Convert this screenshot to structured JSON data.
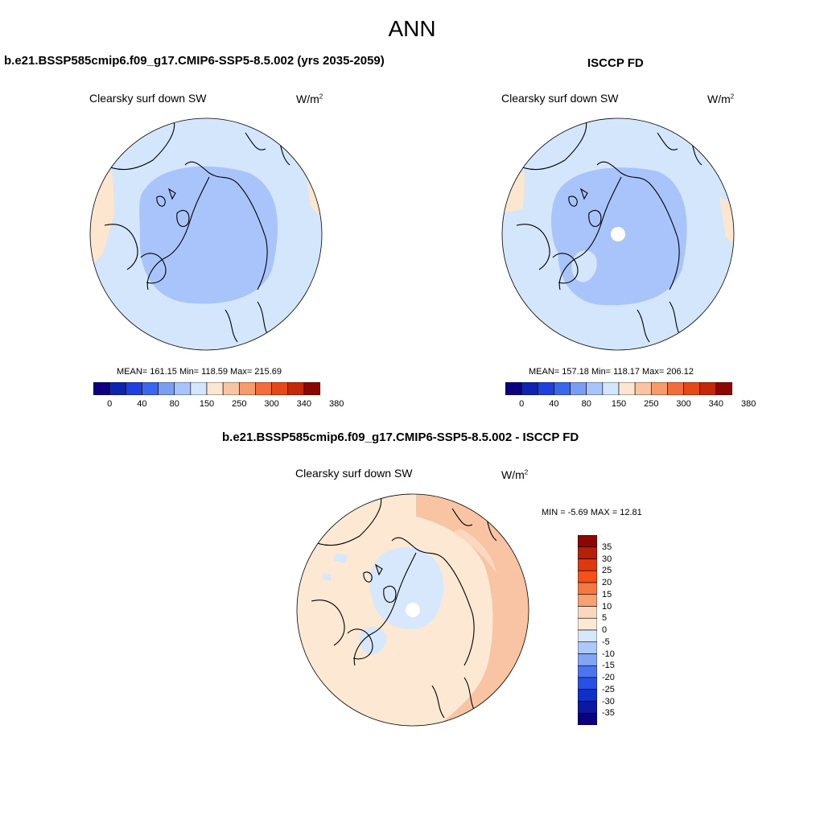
{
  "title": "ANN",
  "panels": [
    {
      "title": "b.e21.BSSP585cmip6.f09_g17.CMIP6-SSP5-8.5.002 (yrs 2035-2059)",
      "variable": "Clearsky surf down SW",
      "units": "W/m",
      "units_sup": "2",
      "stats": "MEAN= 161.15  Min= 118.59  Max= 215.69"
    },
    {
      "title": "ISCCP FD",
      "variable": "Clearsky surf down SW",
      "units": "W/m",
      "units_sup": "2",
      "stats": "MEAN= 157.18  Min= 118.17  Max= 206.12"
    },
    {
      "title": "b.e21.BSSP585cmip6.f09_g17.CMIP6-SSP5-8.5.002 - ISCCP FD",
      "variable": "Clearsky surf down SW",
      "units": "W/m",
      "units_sup": "2",
      "stats": "MIN =  -5.69 MAX =  12.81"
    }
  ],
  "colorbar_abs": {
    "colors": [
      "#0c0080",
      "#0d24b0",
      "#1f40e0",
      "#3a66f0",
      "#7b9ef5",
      "#a8c4fa",
      "#d4e6fc",
      "#fce6d0",
      "#f8c4a4",
      "#f79a6c",
      "#f56c3c",
      "#e64818",
      "#c42808",
      "#8a0800"
    ],
    "ticks": [
      "0",
      "40",
      "80",
      "150",
      "250",
      "300",
      "340",
      "380"
    ]
  },
  "colorbar_diff": {
    "colors": [
      "#8a0800",
      "#b52008",
      "#dd3810",
      "#f55018",
      "#f57840",
      "#f7a070",
      "#fad8c0",
      "#fde8d4",
      "#d8e8fc",
      "#adc8fa",
      "#84a4f5",
      "#4a74f0",
      "#2850e6",
      "#1030c8",
      "#0c18a0",
      "#0c0080"
    ],
    "ticks": [
      "35",
      "30",
      "25",
      "20",
      "15",
      "10",
      "5",
      "0",
      "-5",
      "-10",
      "-15",
      "-20",
      "-25",
      "-30",
      "-35"
    ]
  }
}
